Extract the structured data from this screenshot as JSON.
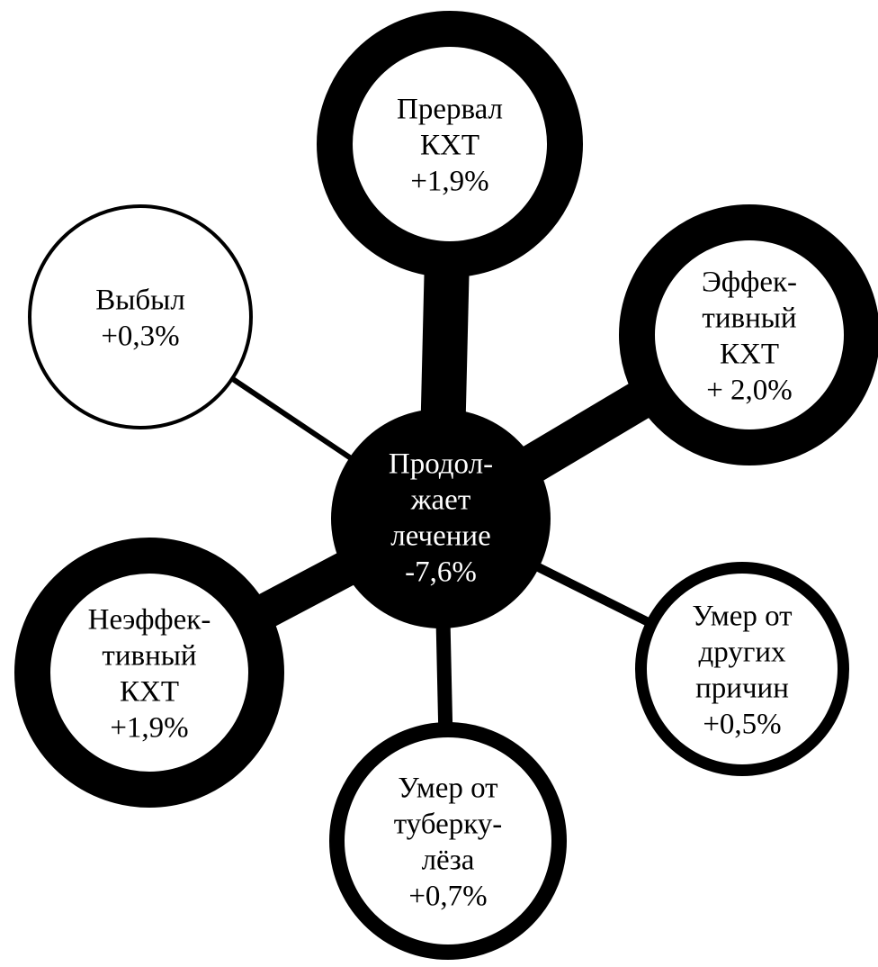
{
  "diagram": {
    "type": "star",
    "colors": {
      "ink": "#000000",
      "paper": "#ffffff"
    },
    "center": {
      "lines": [
        "Продол-",
        "жает",
        "лечение",
        "-7,6%"
      ]
    },
    "nodes": [
      {
        "id": "prerval",
        "lines": [
          "Прервал",
          "КХТ",
          "+1,9%"
        ],
        "emphasis": "thick"
      },
      {
        "id": "effektivny",
        "lines": [
          "Эффек-",
          "тивный",
          "КХТ",
          "+ 2,0%"
        ],
        "emphasis": "thick"
      },
      {
        "id": "umer-drugie",
        "lines": [
          "Умер от",
          "других",
          "причин",
          "+0,5%"
        ],
        "emphasis": "thin"
      },
      {
        "id": "umer-tuberkulez",
        "lines": [
          "Умер от",
          "туберку-",
          "лёза",
          "+0,7%"
        ],
        "emphasis": "medium"
      },
      {
        "id": "neeffektivny",
        "lines": [
          "Неэффек-",
          "тивный",
          "КХТ",
          "+1,9%"
        ],
        "emphasis": "thick"
      },
      {
        "id": "vybyl",
        "lines": [
          "Выбыл",
          "+0,3%"
        ],
        "emphasis": "thin"
      }
    ]
  }
}
